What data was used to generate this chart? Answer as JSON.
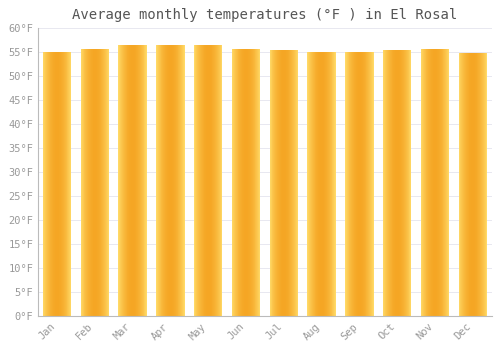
{
  "title": "Average monthly temperatures (°F ) in El Rosal",
  "categories": [
    "Jan",
    "Feb",
    "Mar",
    "Apr",
    "May",
    "Jun",
    "Jul",
    "Aug",
    "Sep",
    "Oct",
    "Nov",
    "Dec"
  ],
  "values": [
    55.0,
    55.5,
    56.5,
    56.5,
    56.5,
    55.5,
    55.3,
    55.0,
    55.0,
    55.3,
    55.5,
    54.7
  ],
  "ylim": [
    0,
    60
  ],
  "yticks": [
    0,
    5,
    10,
    15,
    20,
    25,
    30,
    35,
    40,
    45,
    50,
    55,
    60
  ],
  "ytick_labels": [
    "0°F",
    "5°F",
    "10°F",
    "15°F",
    "20°F",
    "25°F",
    "30°F",
    "35°F",
    "40°F",
    "45°F",
    "50°F",
    "55°F",
    "60°F"
  ],
  "bar_color_center": "#F5A623",
  "bar_color_edge": "#FFCC44",
  "background_color": "#FFFFFF",
  "grid_color": "#E8E8F0",
  "title_fontsize": 10,
  "tick_fontsize": 7.5,
  "font_color": "#999999",
  "title_font_color": "#555555"
}
